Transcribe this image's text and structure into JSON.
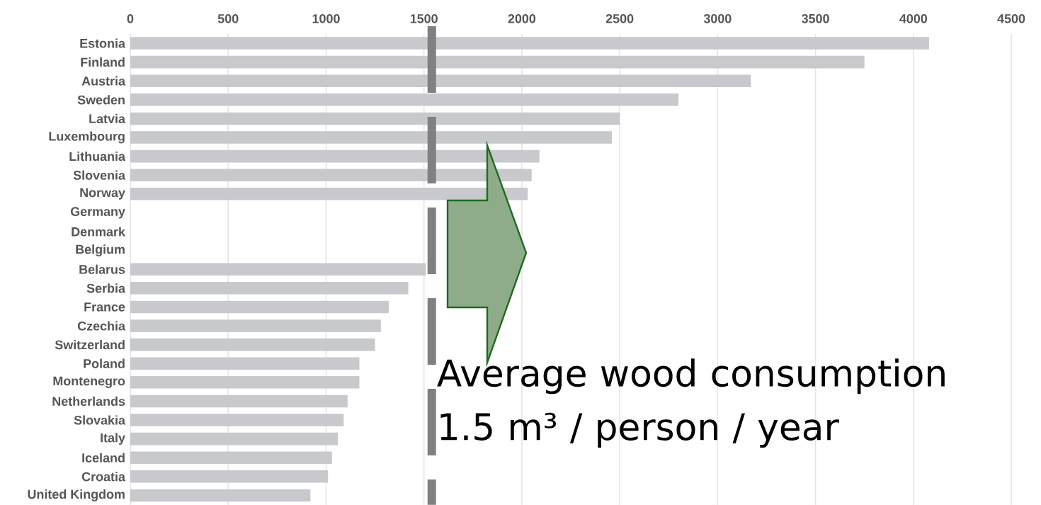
{
  "chart_data": {
    "type": "bar",
    "orientation": "horizontal",
    "categories": [
      "Estonia",
      "Finland",
      "Austria",
      "Sweden",
      "Latvia",
      "Luxembourg",
      "Lithuania",
      "Slovenia",
      "Norway",
      "Germany",
      "Denmark",
      "Belgium",
      "Belarus",
      "Serbia",
      "France",
      "Czechia",
      "Switzerland",
      "Poland",
      "Montenegro",
      "Netherlands",
      "Slovakia",
      "Italy",
      "Iceland",
      "Croatia",
      "United Kingdom"
    ],
    "values": [
      4080,
      3750,
      3170,
      2800,
      2500,
      2460,
      2090,
      2050,
      2030,
      null,
      null,
      null,
      1510,
      1420,
      1320,
      1280,
      1250,
      1170,
      1170,
      1110,
      1090,
      1060,
      1030,
      1010,
      920
    ],
    "color": "#c8c9cc",
    "xlim": [
      0,
      4500
    ],
    "xticks": [
      0,
      500,
      1000,
      1500,
      2000,
      2500,
      3000,
      3500,
      4000,
      4500
    ],
    "grid": "x",
    "ref_lines": [
      {
        "axis": "x",
        "value": 1540,
        "label": "Average wood consumption 1.5 m³ / person / year",
        "color": "#808080",
        "line_style": "dashed"
      }
    ]
  }
}
